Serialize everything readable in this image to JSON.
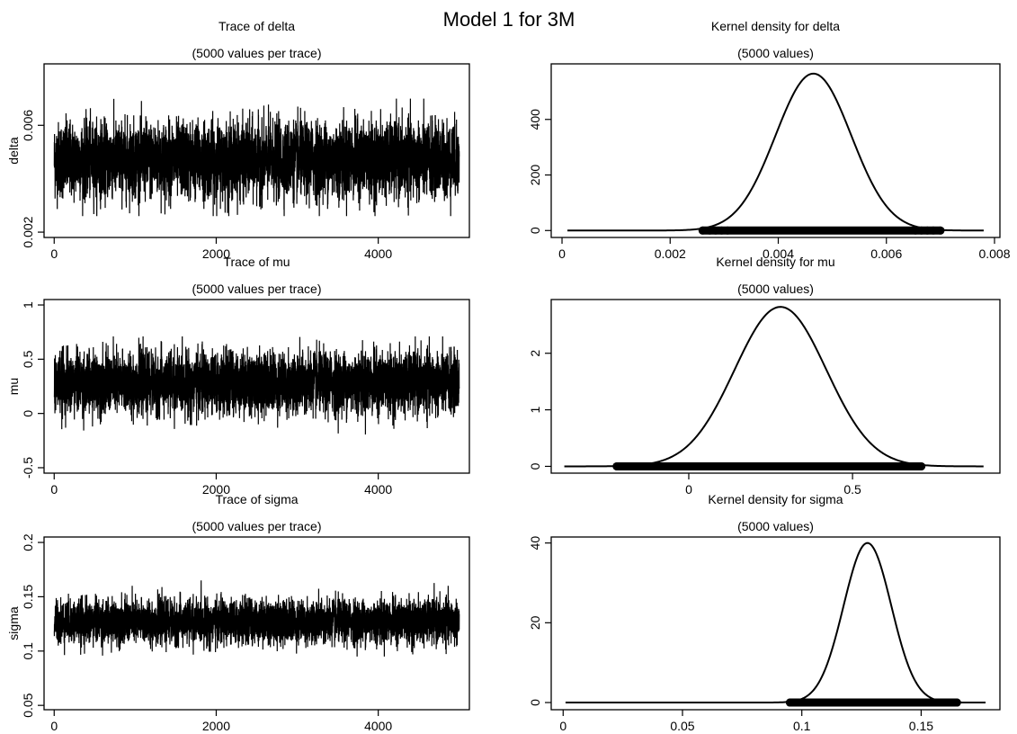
{
  "figure": {
    "title": "Model 1 for 3M",
    "trace_subtitle": "(5000 values per trace)",
    "density_subtitle": "(5000 values)"
  },
  "colors": {
    "ink": "#000000",
    "background": "#ffffff"
  },
  "chart_data": [
    {
      "type": "line",
      "kind": "trace",
      "parameter": "delta",
      "title": "Trace of delta",
      "subtitle": "(5000 values per trace)",
      "xlabel": "",
      "ylabel": "delta",
      "xlim": [
        -125,
        5125
      ],
      "ylim": [
        0.0018,
        0.0083
      ],
      "x_ticks": [
        0,
        2000,
        4000
      ],
      "y_ticks": [
        0.002,
        0.006
      ],
      "y_tick_labels": [
        "0.002",
        "0.006"
      ],
      "n_values": 5000,
      "series_summary": {
        "center": 0.0047,
        "spread": 0.0007,
        "min": 0.0026,
        "max": 0.007
      }
    },
    {
      "type": "line",
      "kind": "density",
      "parameter": "delta",
      "title": "Kernel density for delta",
      "subtitle": "(5000 values)",
      "xlabel": "",
      "ylabel": "",
      "xlim": [
        -0.0002,
        0.0081
      ],
      "ylim": [
        -25,
        600
      ],
      "x_ticks": [
        0,
        0.002,
        0.004,
        0.006,
        0.008
      ],
      "x_tick_labels": [
        "0",
        "0.002",
        "0.004",
        "0.006",
        "0.008"
      ],
      "y_ticks": [
        0,
        200,
        400
      ],
      "density": {
        "center": 0.00465,
        "sd": 0.0007,
        "peak": 565,
        "x_range": [
          0.0001,
          0.0078
        ]
      },
      "rug": {
        "min": 0.0026,
        "max": 0.007
      }
    },
    {
      "type": "line",
      "kind": "trace",
      "parameter": "mu",
      "title": "Trace of mu",
      "subtitle": "(5000 values per trace)",
      "xlabel": "",
      "ylabel": "mu",
      "xlim": [
        -125,
        5125
      ],
      "ylim": [
        -0.55,
        1.05
      ],
      "x_ticks": [
        0,
        2000,
        4000
      ],
      "y_ticks": [
        -0.5,
        0,
        0.5,
        1
      ],
      "y_tick_labels": [
        "-0.5",
        "0",
        "0.5",
        "1"
      ],
      "n_values": 5000,
      "series_summary": {
        "center": 0.28,
        "spread": 0.14,
        "min": -0.22,
        "max": 0.71
      }
    },
    {
      "type": "line",
      "kind": "density",
      "parameter": "mu",
      "title": "Kernel density for mu",
      "subtitle": "(5000 values)",
      "xlabel": "",
      "ylabel": "",
      "xlim": [
        -0.42,
        0.95
      ],
      "ylim": [
        -0.12,
        2.95
      ],
      "x_ticks": [
        0,
        0.5
      ],
      "x_tick_labels": [
        "0",
        "0.5"
      ],
      "y_ticks": [
        0,
        1,
        2
      ],
      "density": {
        "center": 0.28,
        "sd": 0.14,
        "peak": 2.82,
        "x_range": [
          -0.38,
          0.9
        ]
      },
      "rug": {
        "min": -0.22,
        "max": 0.71
      }
    },
    {
      "type": "line",
      "kind": "trace",
      "parameter": "sigma",
      "title": "Trace of sigma",
      "subtitle": "(5000 values per trace)",
      "xlabel": "",
      "ylabel": "sigma",
      "xlim": [
        -125,
        5125
      ],
      "ylim": [
        0.046,
        0.205
      ],
      "x_ticks": [
        0,
        2000,
        4000
      ],
      "y_ticks": [
        0.05,
        0.1,
        0.15,
        0.2
      ],
      "y_tick_labels": [
        "0.05",
        "0.1",
        "0.15",
        "0.2"
      ],
      "n_values": 5000,
      "series_summary": {
        "center": 0.127,
        "spread": 0.01,
        "min": 0.095,
        "max": 0.165
      }
    },
    {
      "type": "line",
      "kind": "density",
      "parameter": "sigma",
      "title": "Kernel density for sigma",
      "subtitle": "(5000 values)",
      "xlabel": "",
      "ylabel": "",
      "xlim": [
        -0.005,
        0.183
      ],
      "ylim": [
        -1.8,
        41.5
      ],
      "x_ticks": [
        0,
        0.05,
        0.1,
        0.15
      ],
      "x_tick_labels": [
        "0",
        "0.05",
        "0.1",
        "0.15"
      ],
      "y_ticks": [
        0,
        20,
        40
      ],
      "density": {
        "center": 0.1275,
        "sd": 0.01,
        "peak": 40,
        "x_range": [
          0.001,
          0.177
        ]
      },
      "rug": {
        "min": 0.095,
        "max": 0.165
      }
    }
  ]
}
